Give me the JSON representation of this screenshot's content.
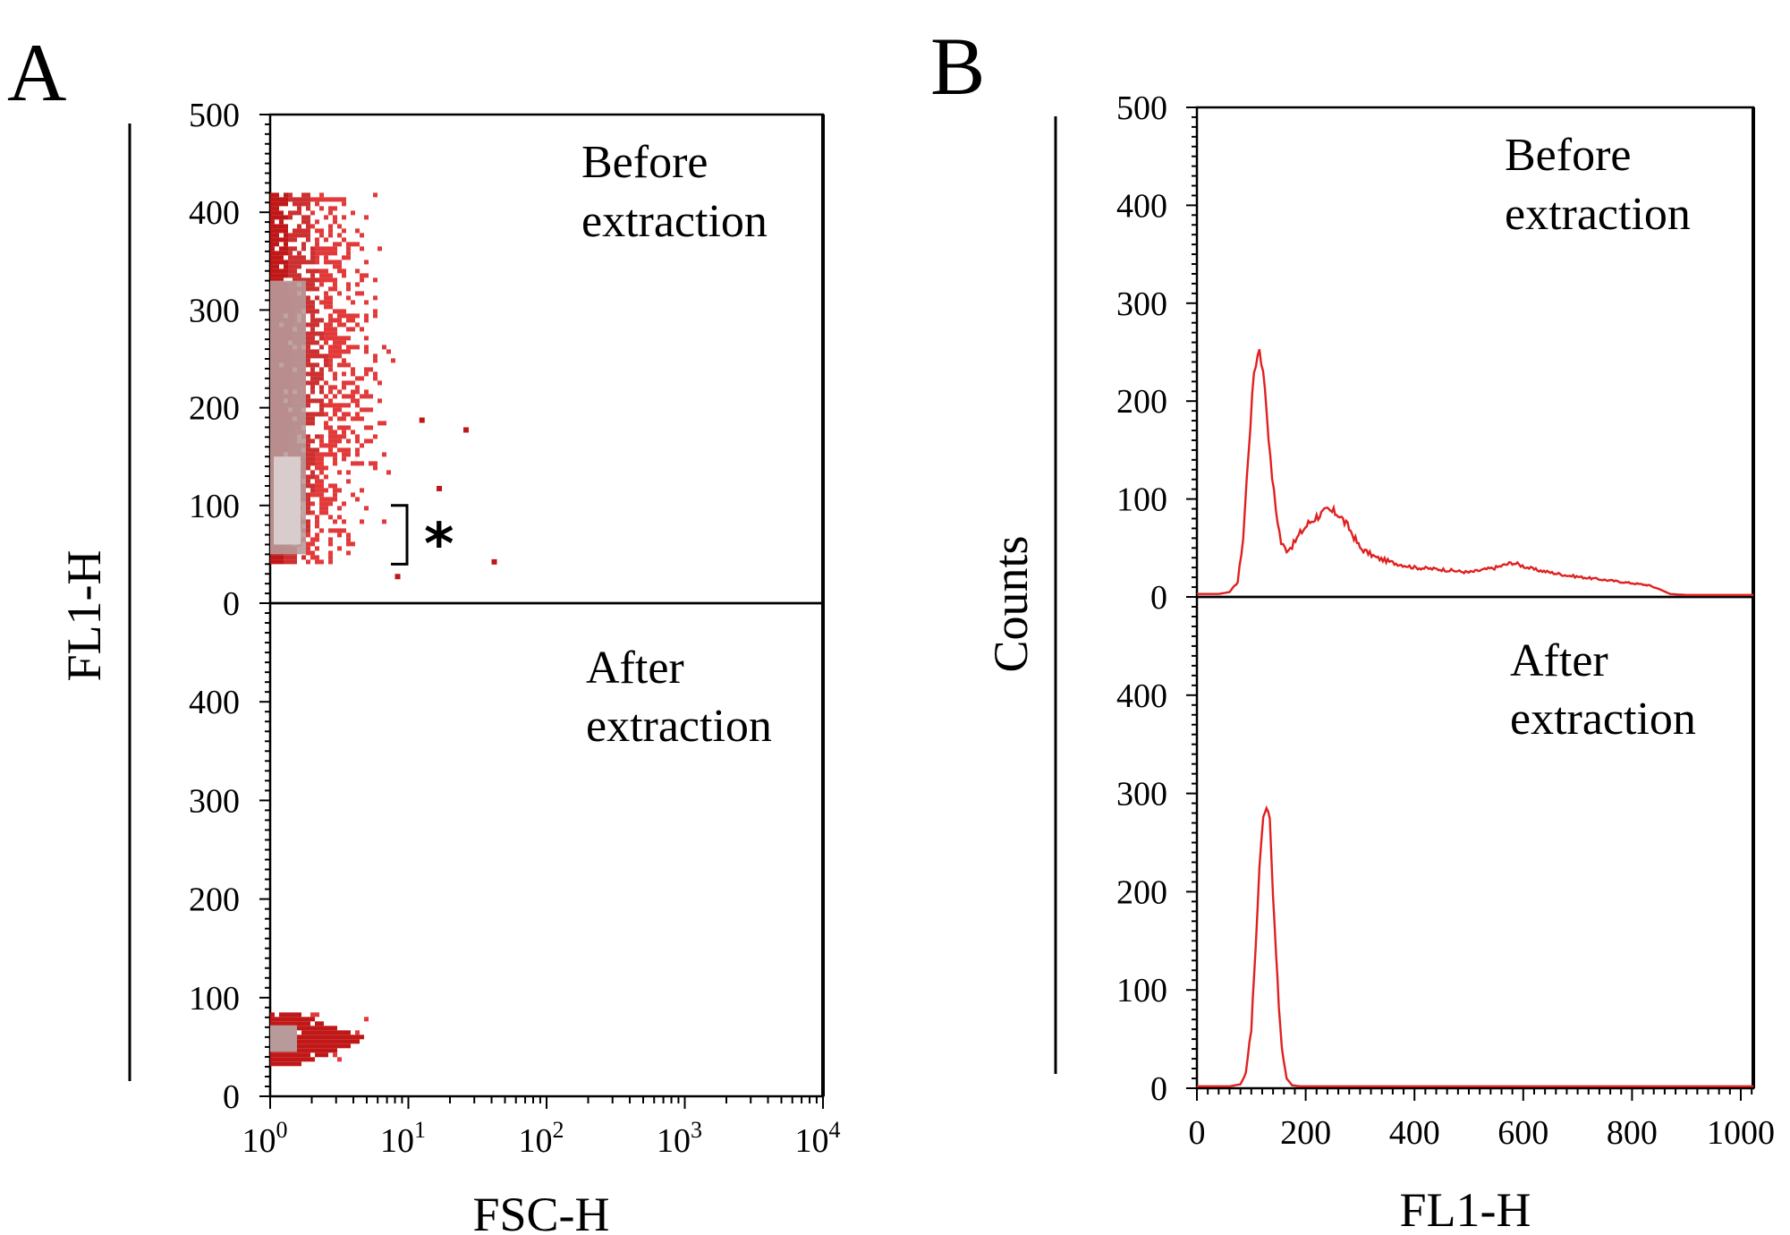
{
  "colors": {
    "trace": "#e02020",
    "dot_dark": "#c01818",
    "dot_mid": "#cc3030",
    "dot_light": "#e23a3a",
    "density_gray": "#b89a9a",
    "density_light": "#d8cccc",
    "axis": "#000000"
  },
  "panels": {
    "A": {
      "label": "A",
      "xlabel": "FSC-H",
      "ylabel": "FL1-H",
      "x_tick_bases": [
        "10",
        "10",
        "10",
        "10",
        "10"
      ],
      "x_tick_exps": [
        "0",
        "1",
        "2",
        "3",
        "4"
      ],
      "asterisk": "*"
    },
    "B": {
      "label": "B",
      "xlabel": "FL1-H",
      "ylabel": "Counts"
    }
  },
  "chart_data": [
    {
      "type": "scatter",
      "panel": "A-top",
      "annotation": [
        "Before",
        "extraction"
      ],
      "xlabel": "FSC-H",
      "ylabel": "FL1-H",
      "x_scale": "log",
      "xlim": [
        1,
        10000
      ],
      "ylim": [
        0,
        500
      ],
      "x_ticks": [
        "10^0",
        "10^1",
        "10^2",
        "10^3",
        "10^4"
      ],
      "y_ticks": [
        "0",
        "100",
        "200",
        "300",
        "400",
        "500"
      ],
      "clusters": [
        {
          "x_range": [
            1,
            8
          ],
          "y_range": [
            40,
            420
          ],
          "density": "high"
        }
      ],
      "outliers": [
        [
          12,
          190
        ],
        [
          16,
          120
        ],
        [
          25,
          180
        ],
        [
          40,
          45
        ],
        [
          8,
          30
        ]
      ],
      "bracket_y_range": [
        40,
        100
      ]
    },
    {
      "type": "scatter",
      "panel": "A-bottom",
      "annotation": [
        "After",
        "extraction"
      ],
      "xlabel": "FSC-H",
      "ylabel": "FL1-H",
      "x_scale": "log",
      "xlim": [
        1,
        10000
      ],
      "ylim": [
        0,
        500
      ],
      "x_ticks": [
        "10^0",
        "10^1",
        "10^2",
        "10^3",
        "10^4"
      ],
      "y_ticks": [
        "0",
        "100",
        "200",
        "300",
        "400"
      ],
      "clusters": [
        {
          "x_range": [
            1,
            5
          ],
          "y_range": [
            35,
            85
          ],
          "density": "high"
        }
      ]
    },
    {
      "type": "line",
      "panel": "B-top",
      "annotation": [
        "Before",
        "extraction"
      ],
      "xlabel": "FL1-H",
      "ylabel": "Counts",
      "xlim": [
        0,
        1023
      ],
      "ylim": [
        0,
        500
      ],
      "x_ticks": [
        "0",
        "200",
        "400",
        "600",
        "800",
        "1000"
      ],
      "y_ticks": [
        "0",
        "100",
        "200",
        "300",
        "400",
        "500"
      ],
      "x": [
        0,
        40,
        60,
        75,
        85,
        95,
        105,
        115,
        125,
        135,
        145,
        155,
        165,
        175,
        190,
        205,
        220,
        240,
        260,
        280,
        300,
        330,
        360,
        400,
        450,
        500,
        550,
        580,
        620,
        680,
        740,
        800,
        830,
        850,
        870,
        900,
        1023
      ],
      "y": [
        3,
        3,
        5,
        15,
        60,
        150,
        230,
        255,
        215,
        140,
        90,
        55,
        48,
        52,
        65,
        75,
        82,
        88,
        85,
        70,
        50,
        40,
        35,
        30,
        28,
        25,
        30,
        35,
        28,
        22,
        18,
        14,
        12,
        8,
        3,
        2,
        2
      ]
    },
    {
      "type": "line",
      "panel": "B-bottom",
      "annotation": [
        "After",
        "extraction"
      ],
      "xlabel": "FL1-H",
      "ylabel": "Counts",
      "xlim": [
        0,
        1023
      ],
      "ylim": [
        0,
        500
      ],
      "x_ticks": [
        "0",
        "200",
        "400",
        "600",
        "800",
        "1000"
      ],
      "y_ticks": [
        "0",
        "100",
        "200",
        "300",
        "400"
      ],
      "x": [
        0,
        60,
        80,
        90,
        100,
        108,
        115,
        122,
        128,
        134,
        140,
        148,
        156,
        165,
        175,
        190,
        1023
      ],
      "y": [
        2,
        2,
        4,
        15,
        60,
        140,
        230,
        280,
        285,
        270,
        200,
        110,
        40,
        10,
        3,
        2,
        2
      ]
    }
  ]
}
